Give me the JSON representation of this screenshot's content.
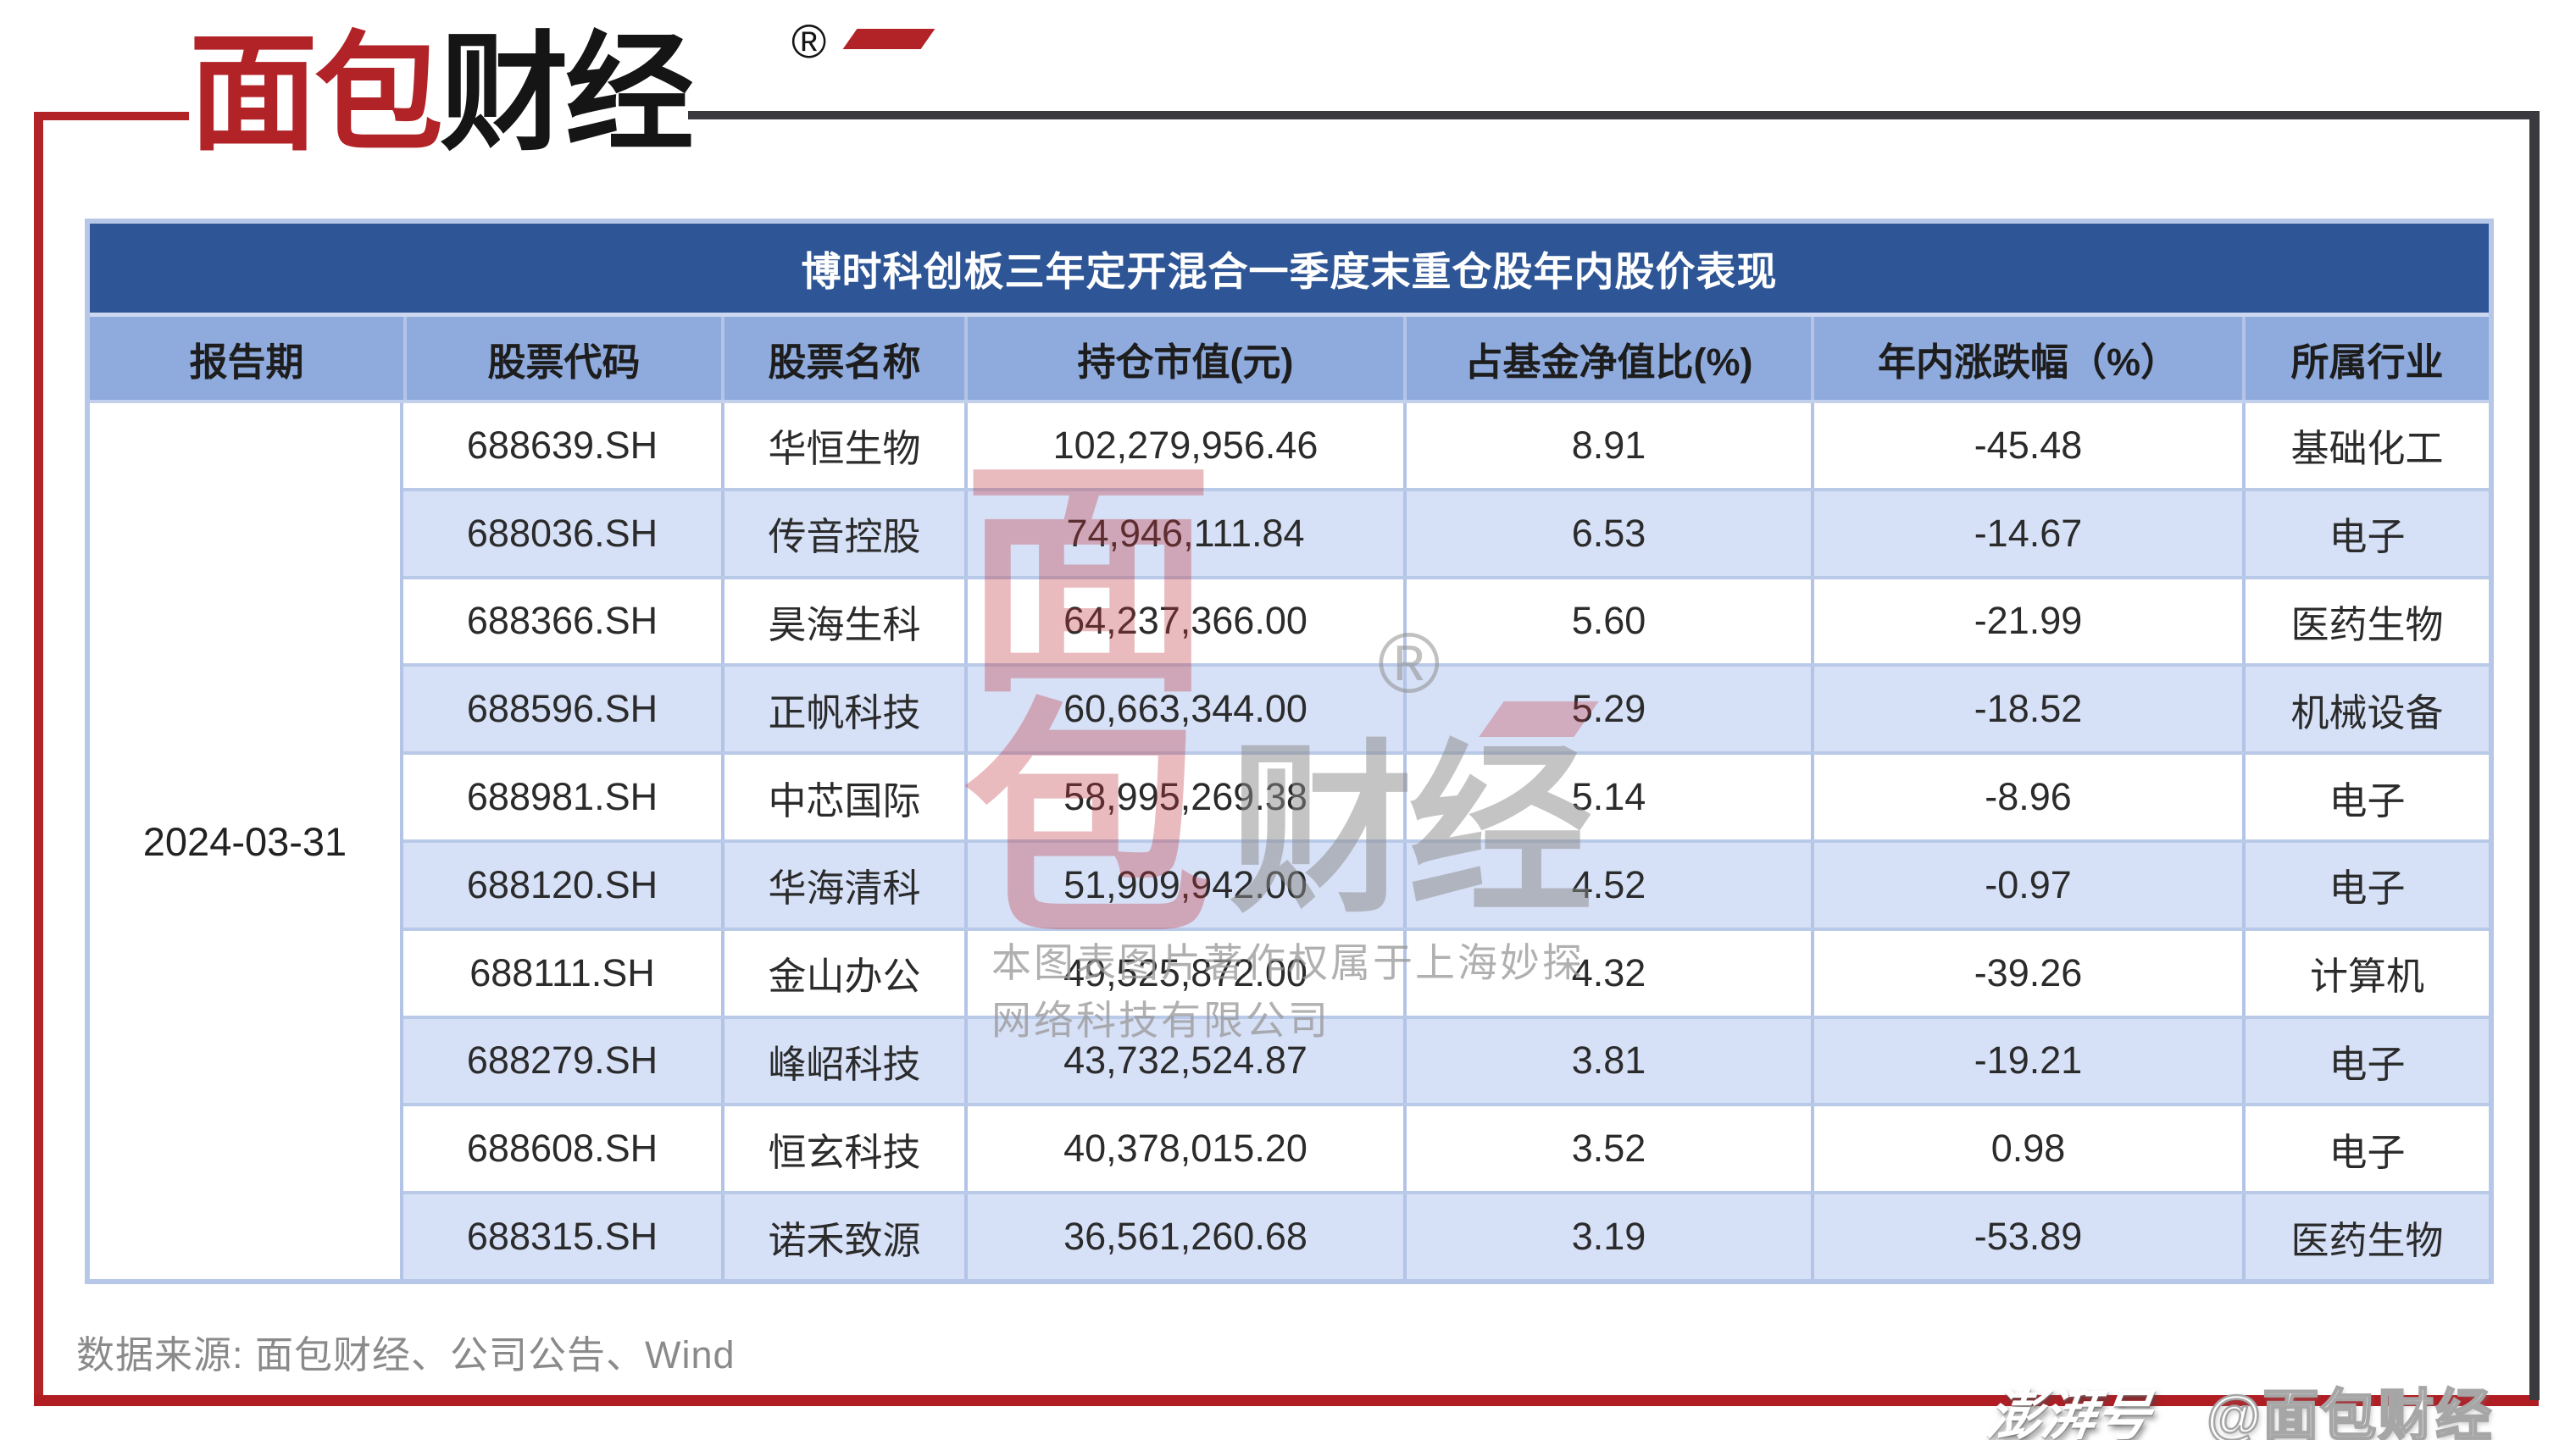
{
  "brand": {
    "logo_red_text": "面包",
    "logo_black_text": "财经",
    "registered_mark": "®"
  },
  "table": {
    "title": "博时科创板三年定开混合一季度末重仓股年内股价表现",
    "columns": [
      "报告期",
      "股票代码",
      "股票名称",
      "持仓市值(元)",
      "占基金净值比(%)",
      "年内涨跌幅（%）",
      "所属行业"
    ],
    "report_date": "2024-03-31",
    "rows": [
      {
        "code": "688639.SH",
        "name": "华恒生物",
        "value": "102,279,956.46",
        "pct": "8.91",
        "change": "-45.48",
        "industry": "基础化工"
      },
      {
        "code": "688036.SH",
        "name": "传音控股",
        "value": "74,946,111.84",
        "pct": "6.53",
        "change": "-14.67",
        "industry": "电子"
      },
      {
        "code": "688366.SH",
        "name": "昊海生科",
        "value": "64,237,366.00",
        "pct": "5.60",
        "change": "-21.99",
        "industry": "医药生物"
      },
      {
        "code": "688596.SH",
        "name": "正帆科技",
        "value": "60,663,344.00",
        "pct": "5.29",
        "change": "-18.52",
        "industry": "机械设备"
      },
      {
        "code": "688981.SH",
        "name": "中芯国际",
        "value": "58,995,269.38",
        "pct": "5.14",
        "change": "-8.96",
        "industry": "电子"
      },
      {
        "code": "688120.SH",
        "name": "华海清科",
        "value": "51,909,942.00",
        "pct": "4.52",
        "change": "-0.97",
        "industry": "电子"
      },
      {
        "code": "688111.SH",
        "name": "金山办公",
        "value": "49,525,872.00",
        "pct": "4.32",
        "change": "-39.26",
        "industry": "计算机"
      },
      {
        "code": "688279.SH",
        "name": "峰岹科技",
        "value": "43,732,524.87",
        "pct": "3.81",
        "change": "-19.21",
        "industry": "电子"
      },
      {
        "code": "688608.SH",
        "name": "恒玄科技",
        "value": "40,378,015.20",
        "pct": "3.52",
        "change": "0.98",
        "industry": "电子"
      },
      {
        "code": "688315.SH",
        "name": "诺禾致源",
        "value": "36,561,260.68",
        "pct": "3.19",
        "change": "-53.89",
        "industry": "医药生物"
      }
    ]
  },
  "watermark": {
    "logo_char_top": "面",
    "logo_char_bottom": "包",
    "logo_gray_text": "财经",
    "registered_mark": "®",
    "copyright_line1": "本图表图片著作权属于上海妙探",
    "copyright_line2": "网络科技有限公司"
  },
  "footer": {
    "source": "数据来源: 面包财经、公司公告、Wind"
  },
  "badge": {
    "platform": "澎湃号",
    "account": "@面包财经"
  },
  "colors": {
    "title_bar": "#2e5595",
    "header_row": "#8faadc",
    "alt_row": "#d6e0f6",
    "grid_line": "#b3c4e6",
    "frame_red": "#b22328",
    "frame_dark": "#3a3a3e",
    "watermark_red": "#c2343c",
    "watermark_gray": "#8a8a8a"
  },
  "chart_data": {
    "type": "table",
    "title": "博时科创板三年定开混合一季度末重仓股年内股价表现",
    "columns": [
      "报告期",
      "股票代码",
      "股票名称",
      "持仓市值(元)",
      "占基金净值比(%)",
      "年内涨跌幅（%）",
      "所属行业"
    ],
    "rows": [
      [
        "2024-03-31",
        "688639.SH",
        "华恒生物",
        102279956.46,
        8.91,
        -45.48,
        "基础化工"
      ],
      [
        "2024-03-31",
        "688036.SH",
        "传音控股",
        74946111.84,
        6.53,
        -14.67,
        "电子"
      ],
      [
        "2024-03-31",
        "688366.SH",
        "昊海生科",
        64237366.0,
        5.6,
        -21.99,
        "医药生物"
      ],
      [
        "2024-03-31",
        "688596.SH",
        "正帆科技",
        60663344.0,
        5.29,
        -18.52,
        "机械设备"
      ],
      [
        "2024-03-31",
        "688981.SH",
        "中芯国际",
        58995269.38,
        5.14,
        -8.96,
        "电子"
      ],
      [
        "2024-03-31",
        "688120.SH",
        "华海清科",
        51909942.0,
        4.52,
        -0.97,
        "电子"
      ],
      [
        "2024-03-31",
        "688111.SH",
        "金山办公",
        49525872.0,
        4.32,
        -39.26,
        "计算机"
      ],
      [
        "2024-03-31",
        "688279.SH",
        "峰岹科技",
        43732524.87,
        3.81,
        -19.21,
        "电子"
      ],
      [
        "2024-03-31",
        "688608.SH",
        "恒玄科技",
        40378015.2,
        3.52,
        0.98,
        "电子"
      ],
      [
        "2024-03-31",
        "688315.SH",
        "诺禾致源",
        36561260.68,
        3.19,
        -53.89,
        "医药生物"
      ]
    ],
    "source_note": "数据来源: 面包财经、公司公告、Wind"
  }
}
